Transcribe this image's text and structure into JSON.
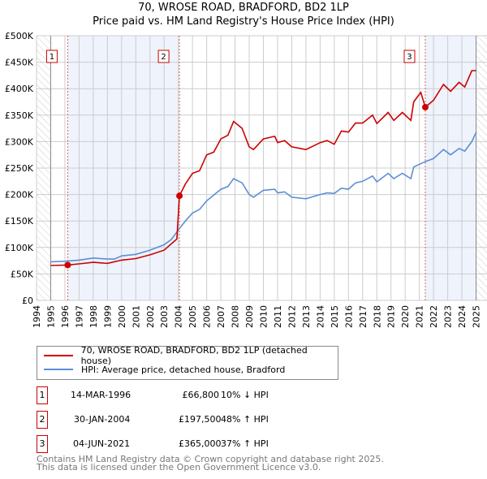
{
  "title": "70, WROSE ROAD, BRADFORD, BD2 1LP",
  "subtitle": "Price paid vs. HM Land Registry's House Price Index (HPI)",
  "chart_data": {
    "type": "line",
    "title": "70, WROSE ROAD, BRADFORD, BD2 1LP",
    "subtitle": "Price paid vs. HM Land Registry's House Price Index (HPI)",
    "xlim": [
      1994,
      2026
    ],
    "ylim": [
      0,
      500000
    ],
    "x_ticks": [
      "1994",
      "1995",
      "1996",
      "1997",
      "1998",
      "1999",
      "2000",
      "2001",
      "2002",
      "2003",
      "2004",
      "2005",
      "2006",
      "2007",
      "2008",
      "2009",
      "2010",
      "2011",
      "2012",
      "2013",
      "2014",
      "2015",
      "2016",
      "2017",
      "2018",
      "2019",
      "2020",
      "2021",
      "2022",
      "2023",
      "2024",
      "2025",
      "2026"
    ],
    "y_ticks": [
      {
        "v": 0,
        "label": "£0"
      },
      {
        "v": 50000,
        "label": "£50K"
      },
      {
        "v": 100000,
        "label": "£100K"
      },
      {
        "v": 150000,
        "label": "£150K"
      },
      {
        "v": 200000,
        "label": "£200K"
      },
      {
        "v": 250000,
        "label": "£250K"
      },
      {
        "v": 300000,
        "label": "£300K"
      },
      {
        "v": 350000,
        "label": "£350K"
      },
      {
        "v": 400000,
        "label": "£400K"
      },
      {
        "v": 450000,
        "label": "£450K"
      },
      {
        "v": 500000,
        "label": "£500K"
      }
    ],
    "grid": true,
    "colors": {
      "property": "#cc0000",
      "hpi": "#5b8fd6",
      "shade": "#eef3fc"
    },
    "series": [
      {
        "name": "70, WROSE ROAD, BRADFORD, BD2 1LP (detached house)",
        "key": "property",
        "x": [
          1995,
          1996.2,
          1997,
          1998,
          1999,
          2000,
          2001,
          2002,
          2003,
          2003.9,
          2004.08,
          2004.5,
          2005,
          2005.5,
          2006,
          2006.5,
          2007,
          2007.5,
          2007.9,
          2008.5,
          2009,
          2009.3,
          2010,
          2010.8,
          2011,
          2011.5,
          2012,
          2013,
          2014,
          2014.5,
          2015,
          2015.5,
          2016,
          2016.5,
          2017,
          2017.7,
          2018,
          2018.8,
          2019.2,
          2019.8,
          2020.4,
          2020.6,
          2021.1,
          2021.42,
          2022,
          2022.7,
          2023.2,
          2023.8,
          2024.2,
          2024.7,
          2025
        ],
        "y": [
          66000,
          66800,
          69000,
          72000,
          70000,
          76000,
          79000,
          86000,
          95000,
          116000,
          197500,
          220000,
          240000,
          245000,
          275000,
          280000,
          305000,
          312000,
          338000,
          325000,
          290000,
          285000,
          305000,
          310000,
          298000,
          302000,
          290000,
          285000,
          298000,
          302000,
          295000,
          320000,
          318000,
          335000,
          335000,
          350000,
          334000,
          355000,
          340000,
          355000,
          340000,
          375000,
          393000,
          365000,
          378000,
          408000,
          395000,
          412000,
          403000,
          434000,
          434000
        ]
      },
      {
        "name": "HPI: Average price, detached house, Bradford",
        "key": "hpi",
        "x": [
          1995,
          1996,
          1997,
          1998,
          1999,
          1999.5,
          2000,
          2001,
          2002,
          2003,
          2003.5,
          2004,
          2004.5,
          2005,
          2005.5,
          2006,
          2007,
          2007.5,
          2007.9,
          2008.5,
          2009,
          2009.3,
          2010,
          2010.8,
          2011,
          2011.5,
          2012,
          2013,
          2014,
          2014.5,
          2015,
          2015.5,
          2016,
          2016.5,
          2017,
          2017.7,
          2018,
          2018.8,
          2019.2,
          2019.8,
          2020.4,
          2020.6,
          2021.4,
          2022,
          2022.7,
          2023.2,
          2023.8,
          2024.2,
          2024.7,
          2025
        ],
        "y": [
          73000,
          74000,
          76000,
          80000,
          78000,
          78000,
          84000,
          87000,
          95000,
          105000,
          115000,
          133000,
          150000,
          165000,
          172000,
          188000,
          210000,
          215000,
          230000,
          222000,
          200000,
          195000,
          208000,
          210000,
          203000,
          205000,
          195000,
          192000,
          200000,
          203000,
          202000,
          212000,
          210000,
          222000,
          225000,
          235000,
          224000,
          240000,
          230000,
          240000,
          230000,
          252000,
          262000,
          268000,
          285000,
          275000,
          287000,
          282000,
          300000,
          317000
        ]
      }
    ],
    "sales": [
      {
        "label": "1",
        "x": 1996.2,
        "y": 66800,
        "date": "14-MAR-1996",
        "price": "£66,800",
        "hpi": "10% ↓ HPI"
      },
      {
        "label": "2",
        "x": 2004.08,
        "y": 197500,
        "date": "30-JAN-2004",
        "price": "£197,500",
        "hpi": "48% ↑ HPI"
      },
      {
        "label": "3",
        "x": 2021.42,
        "y": 365000,
        "date": "04-JUN-2021",
        "price": "£365,000",
        "hpi": "37% ↑ HPI"
      }
    ],
    "shaded_ranges": [
      [
        1996.2,
        2004.08
      ],
      [
        2021.42,
        2025
      ]
    ],
    "hatched_ranges": [
      [
        1994,
        1995
      ],
      [
        2025,
        2026
      ]
    ],
    "legend_position": "below"
  },
  "legend": {
    "property": "70, WROSE ROAD, BRADFORD, BD2 1LP (detached house)",
    "hpi": "HPI: Average price, detached house, Bradford"
  },
  "footer": {
    "line1": "Contains HM Land Registry data © Crown copyright and database right 2025.",
    "line2": "This data is licensed under the Open Government Licence v3.0."
  }
}
